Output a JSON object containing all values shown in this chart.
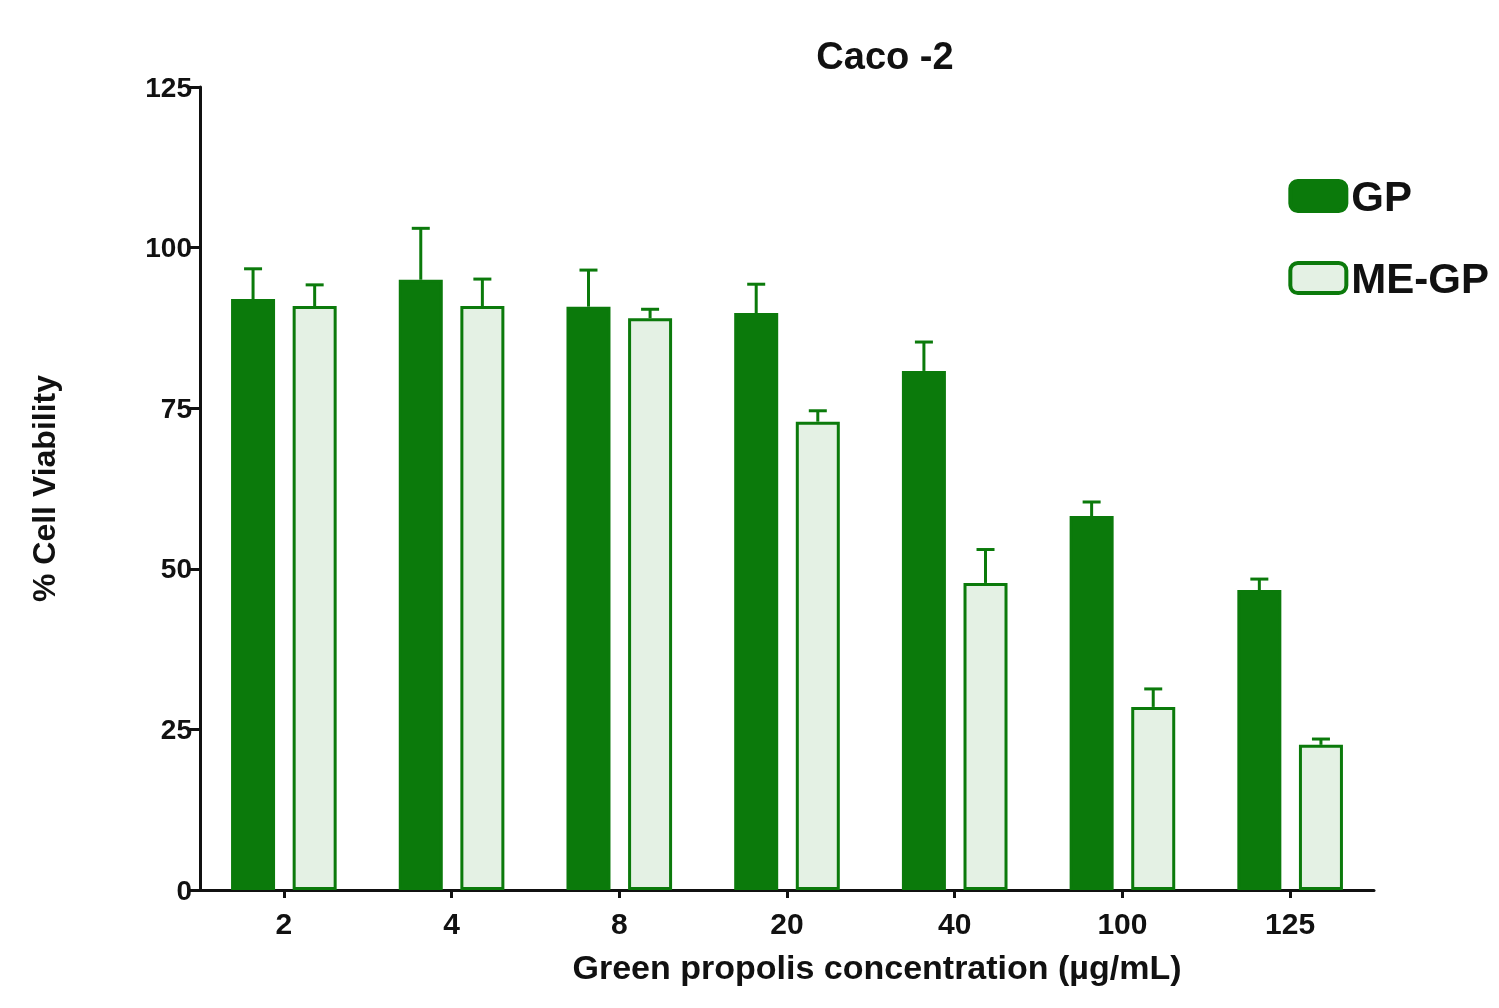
{
  "chart_data": {
    "type": "bar",
    "title": "Caco -2",
    "xlabel": "Green propolis concentration (µg/mL)",
    "ylabel": "% Cell Viability",
    "categories": [
      "2",
      "4",
      "8",
      "20",
      "40",
      "100",
      "125"
    ],
    "series": [
      {
        "name": "GP",
        "color": "#0b7a0b",
        "values": [
          92,
          95,
          90.8,
          89.8,
          80.8,
          58.2,
          46.7
        ],
        "errors": [
          [
            92,
            96.7
          ],
          [
            95,
            103
          ],
          [
            90.8,
            96.5
          ],
          [
            89.8,
            94.3
          ],
          [
            80.8,
            85.3
          ],
          [
            58.2,
            60.4
          ],
          [
            46.7,
            48.4
          ]
        ]
      },
      {
        "name": "ME-GP",
        "color": "#e4f1e4",
        "values": [
          90.9,
          90.9,
          89,
          72.9,
          47.8,
          28.5,
          22.6
        ],
        "errors": [
          [
            90.9,
            94.2
          ],
          [
            90.9,
            95.1
          ],
          [
            89,
            90.4
          ],
          [
            72.9,
            74.6
          ],
          [
            47.8,
            53
          ],
          [
            28.5,
            31.3
          ],
          [
            22.6,
            23.5
          ]
        ]
      }
    ],
    "ylim": [
      0,
      125
    ],
    "yticks": [
      0,
      25,
      50,
      75,
      100,
      125
    ],
    "grid": false,
    "legend": "top right"
  }
}
